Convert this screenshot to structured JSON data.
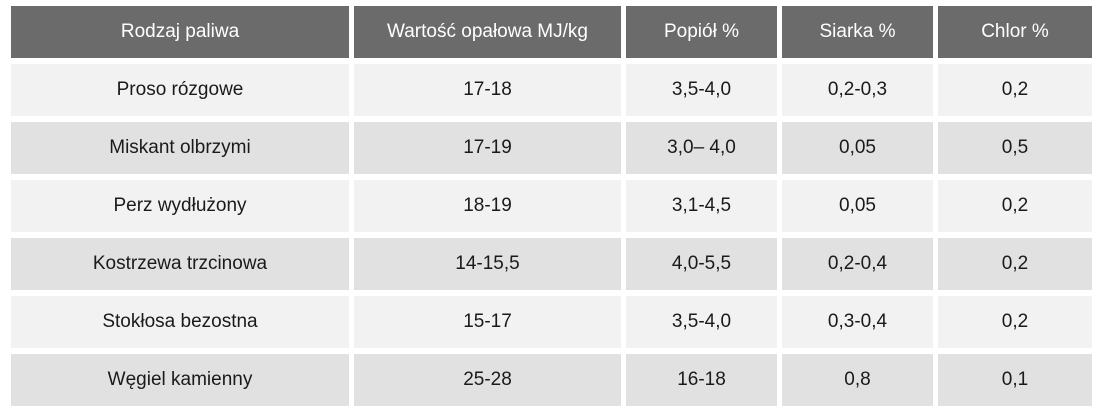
{
  "table": {
    "headers": [
      "Rodzaj paliwa",
      "Wartość opałowa MJ/kg",
      "Popiół %",
      "Siarka %",
      "Chlor %"
    ],
    "rows": [
      [
        "Proso rózgowe",
        "17-18",
        "3,5-4,0",
        "0,2-0,3",
        "0,2"
      ],
      [
        "Miskant olbrzymi",
        "17-19",
        "3,0– 4,0",
        "0,05",
        "0,5"
      ],
      [
        "Perz wydłużony",
        "18-19",
        "3,1-4,5",
        "0,05",
        "0,2"
      ],
      [
        "Kostrzewa trzcinowa",
        "14-15,5",
        "4,0-5,5",
        "0,2-0,4",
        "0,2"
      ],
      [
        "Stokłosa bezostna",
        "15-17",
        "3,5-4,0",
        "0,3-0,4",
        "0,2"
      ],
      [
        "Węgiel kamienny",
        "25-28",
        "16-18",
        "0,8",
        "0,1"
      ]
    ]
  },
  "colors": {
    "header_bg": "#6b6b6b",
    "header_text": "#ffffff",
    "row_light": "#f2f2f2",
    "row_dark": "#e1e1e1"
  }
}
